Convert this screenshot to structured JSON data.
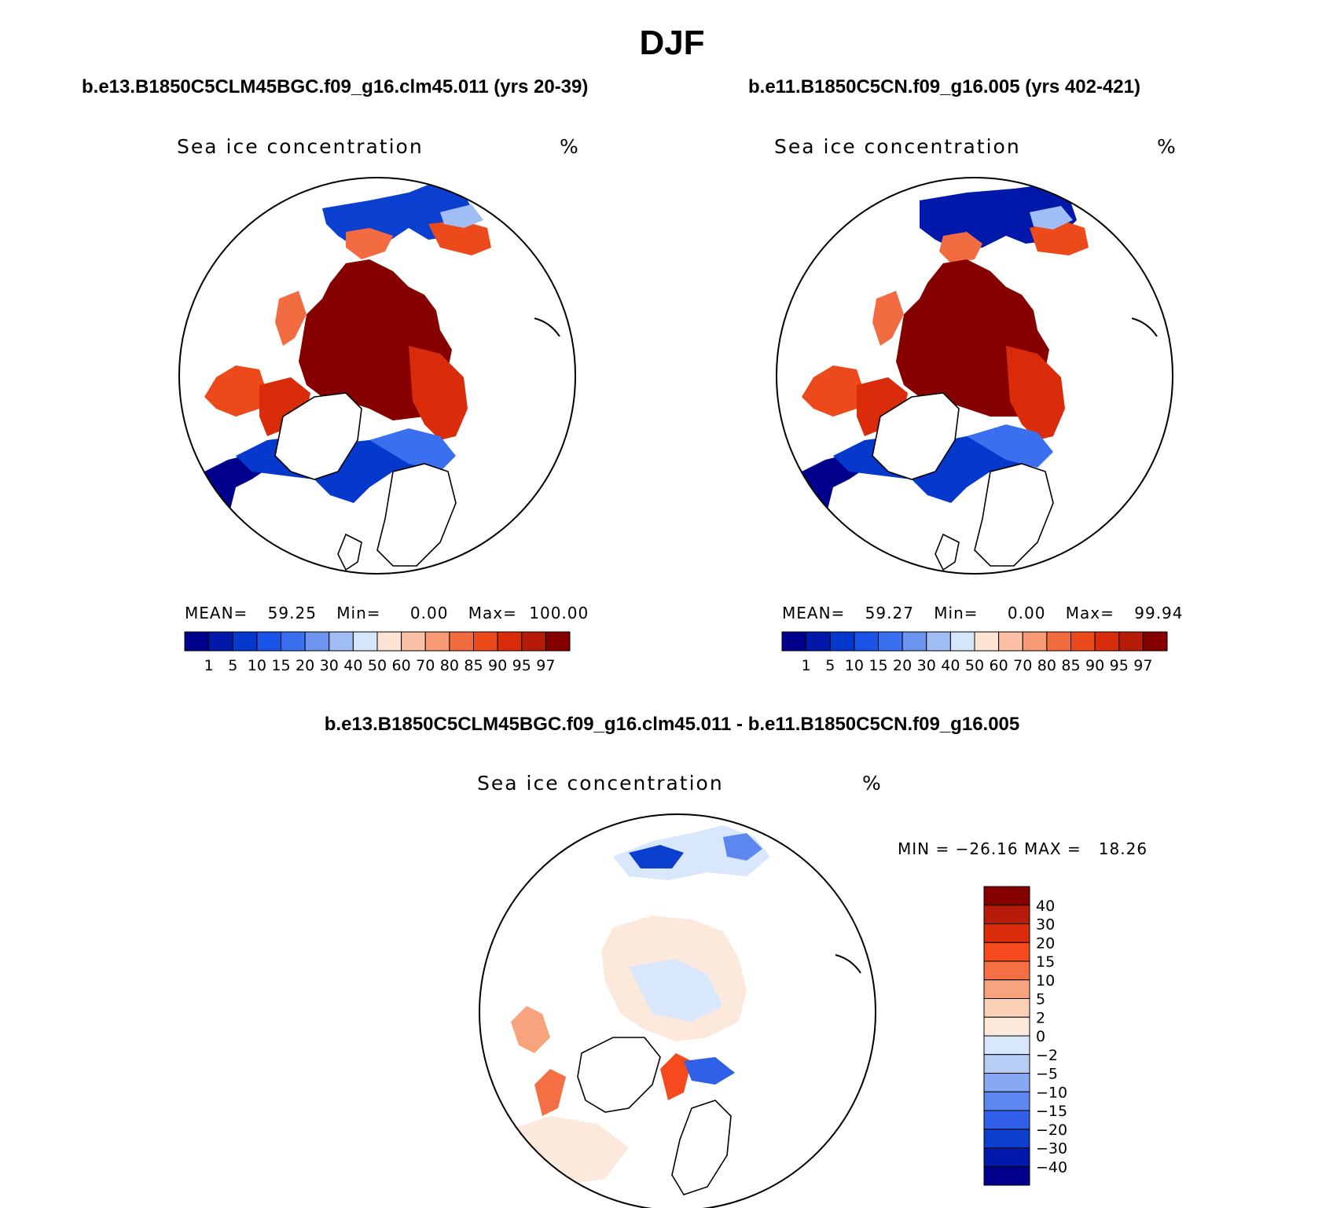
{
  "page_title": "DJF",
  "panels": [
    {
      "case_title": "b.e13.B1850C5CLM45BGC.f09_g16.clm45.011 (yrs 20-39)",
      "variable": "Sea ice concentration",
      "units": "%",
      "stats": {
        "mean_label": "MEAN=",
        "mean": "59.25",
        "min_label": "Min=",
        "min": "0.00",
        "max_label": "Max=",
        "max": "100.00"
      }
    },
    {
      "case_title": "b.e11.B1850C5CN.f09_g16.005 (yrs 402-421)",
      "variable": "Sea ice concentration",
      "units": "%",
      "stats": {
        "mean_label": "MEAN=",
        "mean": "59.27",
        "min_label": "Min=",
        "min": "0.00",
        "max_label": "Max=",
        "max": "99.94"
      }
    }
  ],
  "diff_panel": {
    "case_title": "b.e13.B1850C5CLM45BGC.f09_g16.clm45.011 - b.e11.B1850C5CN.f09_g16.005",
    "variable": "Sea ice concentration",
    "units": "%",
    "minmax": "MIN = −26.16 MAX =   18.26"
  },
  "colorbar_abs": {
    "labels": [
      "1",
      "5",
      "10",
      "15",
      "20",
      "30",
      "40",
      "50",
      "60",
      "70",
      "80",
      "85",
      "90",
      "95",
      "97"
    ],
    "colors": [
      "#00008c",
      "#0019ab",
      "#0538cd",
      "#1a53e8",
      "#3a6fef",
      "#6b95f1",
      "#a0bdf5",
      "#d5e6fb",
      "#fde3d3",
      "#fbc1a4",
      "#f99a74",
      "#f36c41",
      "#ed4a1c",
      "#da2c0b",
      "#b51b08",
      "#860000"
    ]
  },
  "colorbar_diff": {
    "labels": [
      "40",
      "30",
      "20",
      "15",
      "10",
      "5",
      "2",
      "0",
      "−2",
      "−5",
      "−10",
      "−15",
      "−20",
      "−30",
      "−40"
    ],
    "colors": [
      "#860000",
      "#b51b08",
      "#da2c0b",
      "#f44a1d",
      "#f56f44",
      "#f9a27e",
      "#fcd1b8",
      "#fde9dc",
      "#d8e7fb",
      "#b6cef6",
      "#87a8f2",
      "#5d86ee",
      "#3060e8",
      "#0b3fd0",
      "#0019ab",
      "#00008c"
    ]
  }
}
